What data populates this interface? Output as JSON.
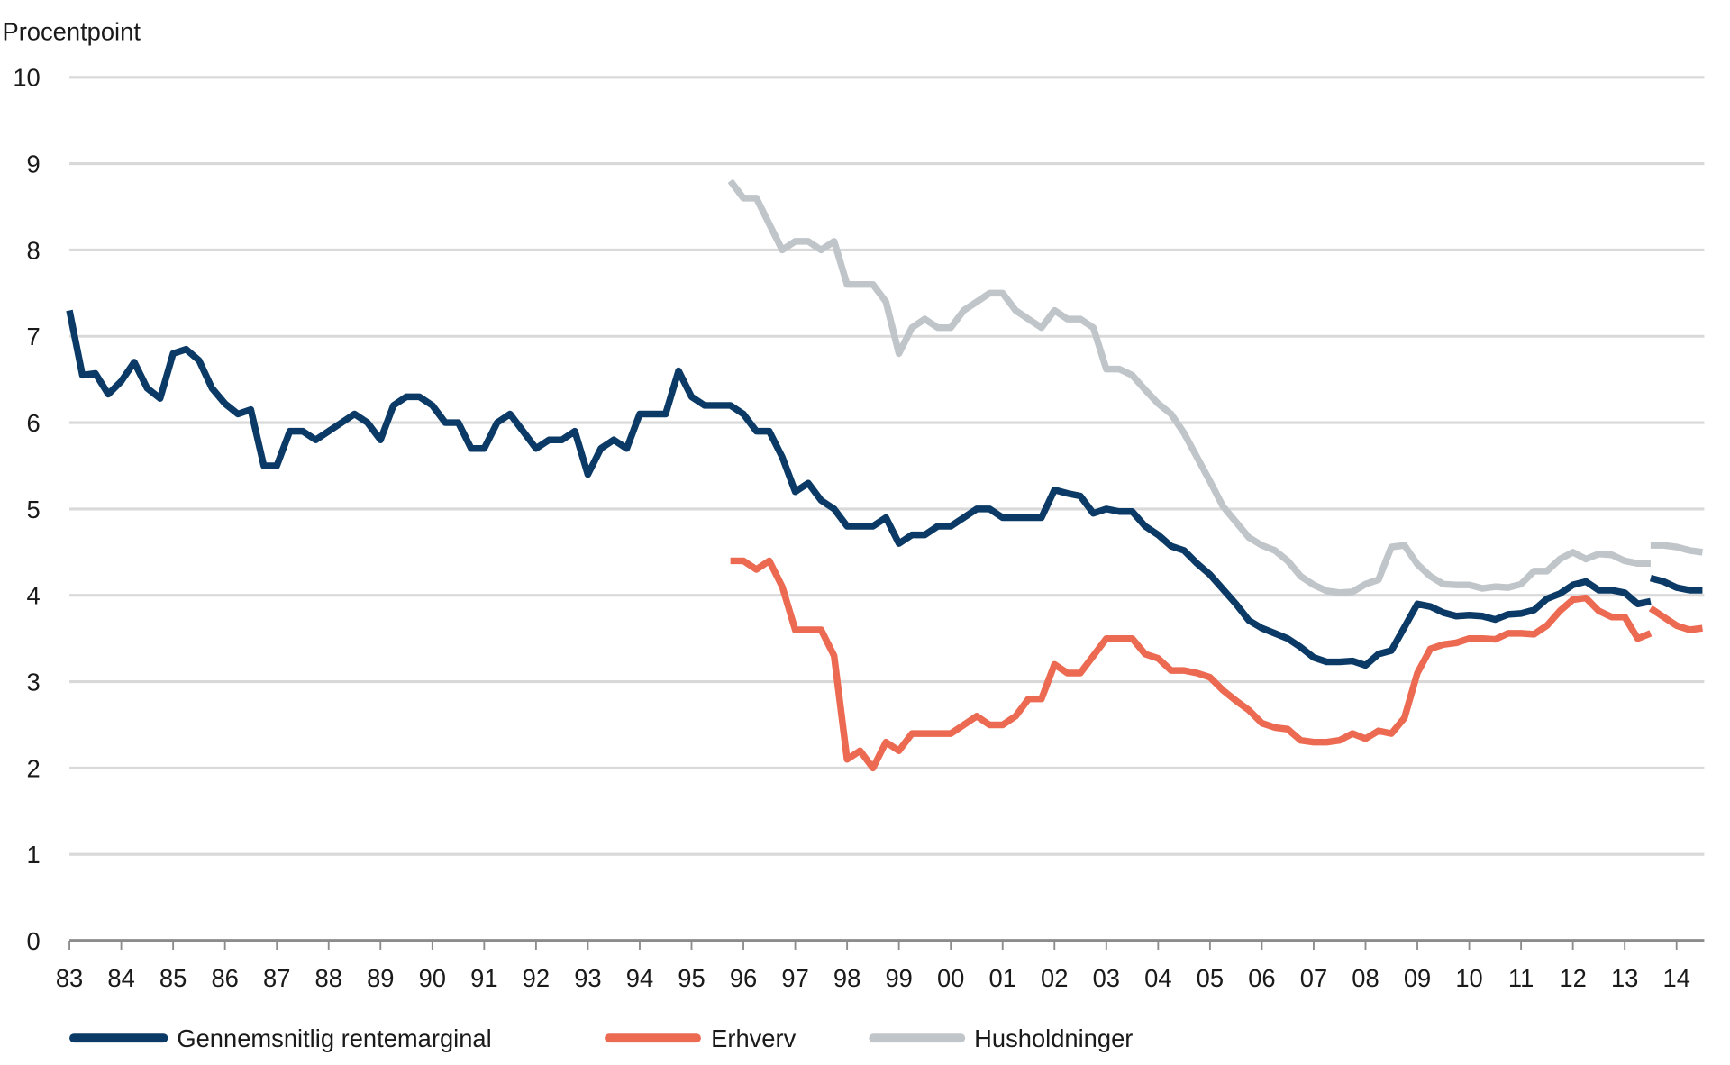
{
  "chart_data": {
    "type": "line",
    "ylabel": "Procentpoint",
    "ylim": [
      0,
      10
    ],
    "yticks": [
      "0",
      "1",
      "2",
      "3",
      "4",
      "5",
      "6",
      "7",
      "8",
      "9",
      "10"
    ],
    "xlim": [
      1983,
      2014.55
    ],
    "xticks": [
      "83",
      "84",
      "85",
      "86",
      "87",
      "88",
      "89",
      "90",
      "91",
      "92",
      "93",
      "94",
      "95",
      "96",
      "97",
      "98",
      "99",
      "00",
      "01",
      "02",
      "03",
      "04",
      "05",
      "06",
      "07",
      "08",
      "09",
      "10",
      "11",
      "12",
      "13",
      "14"
    ],
    "grid": true,
    "legend_position": "bottom",
    "series": [
      {
        "name": "Gennemsnitlig rentemarginal",
        "color": "#0b3a66",
        "segments": [
          {
            "start": 1983.0,
            "step": 0.25,
            "values": [
              7.3,
              6.55,
              6.57,
              6.33,
              6.48,
              6.7,
              6.4,
              6.28,
              6.8,
              6.85,
              6.72,
              6.4,
              6.22,
              6.1,
              6.15,
              5.5,
              5.5,
              5.9,
              5.9,
              5.8,
              5.9,
              6.0,
              6.1,
              6.0,
              5.8,
              6.2,
              6.3,
              6.3,
              6.2,
              6.0,
              6.0,
              5.7,
              5.7,
              6.0,
              6.1,
              5.9,
              5.7,
              5.8,
              5.8,
              5.9,
              5.4,
              5.7,
              5.8,
              5.7,
              6.1,
              6.1,
              6.1,
              6.6,
              6.3,
              6.2,
              6.2,
              6.2,
              6.1,
              5.9,
              5.9,
              5.6,
              5.2,
              5.3,
              5.1,
              5.0,
              4.8,
              4.8,
              4.8,
              4.9,
              4.6,
              4.7,
              4.7,
              4.8,
              4.8,
              4.9,
              5.0,
              5.0,
              4.9,
              4.9,
              4.9,
              4.9,
              5.22,
              5.18,
              5.15,
              4.95,
              5.0,
              4.97,
              4.97,
              4.8,
              4.7,
              4.57,
              4.52,
              4.37,
              4.24,
              4.07,
              3.9,
              3.71,
              3.62,
              3.56,
              3.5,
              3.4,
              3.28,
              3.23,
              3.23,
              3.24,
              3.19,
              3.32,
              3.36,
              3.63,
              3.9,
              3.87,
              3.8,
              3.76,
              3.77,
              3.76,
              3.72,
              3.78,
              3.79,
              3.83,
              3.96,
              4.02,
              4.12,
              4.16,
              4.06,
              4.06,
              4.03,
              3.9,
              3.93
            ]
          },
          {
            "start": 2013.5,
            "step": 0.25,
            "values": [
              4.2,
              4.16,
              4.09,
              4.06,
              4.06
            ]
          }
        ]
      },
      {
        "name": "Erhverv",
        "color": "#ec6a52",
        "segments": [
          {
            "start": 1995.75,
            "step": 0.25,
            "values": [
              4.4,
              4.4,
              4.3,
              4.4,
              4.1,
              3.6,
              3.6,
              3.6,
              3.3,
              2.1,
              2.2,
              2.0,
              2.3,
              2.2,
              2.4,
              2.4,
              2.4,
              2.4,
              2.5,
              2.6,
              2.5,
              2.5,
              2.6,
              2.8,
              2.8,
              3.2,
              3.1,
              3.1,
              3.3,
              3.5,
              3.5,
              3.5,
              3.32,
              3.27,
              3.13,
              3.13,
              3.1,
              3.05,
              2.9,
              2.78,
              2.67,
              2.52,
              2.47,
              2.45,
              2.32,
              2.3,
              2.3,
              2.32,
              2.4,
              2.34,
              2.43,
              2.4,
              2.58,
              3.1,
              3.38,
              3.43,
              3.45,
              3.5,
              3.5,
              3.49,
              3.56,
              3.56,
              3.55,
              3.65,
              3.82,
              3.95,
              3.97,
              3.82,
              3.75,
              3.75,
              3.5,
              3.56
            ]
          },
          {
            "start": 2013.5,
            "step": 0.25,
            "values": [
              3.85,
              3.75,
              3.65,
              3.6,
              3.62
            ]
          }
        ]
      },
      {
        "name": "Husholdninger",
        "color": "#bfc5c9",
        "segments": [
          {
            "start": 1995.75,
            "step": 0.25,
            "values": [
              8.8,
              8.6,
              8.6,
              8.3,
              8.0,
              8.1,
              8.1,
              8.0,
              8.1,
              7.6,
              7.6,
              7.6,
              7.4,
              6.8,
              7.1,
              7.2,
              7.1,
              7.1,
              7.3,
              7.4,
              7.5,
              7.5,
              7.3,
              7.2,
              7.1,
              7.3,
              7.2,
              7.2,
              7.1,
              6.62,
              6.62,
              6.55,
              6.38,
              6.22,
              6.1,
              5.88,
              5.6,
              5.32,
              5.03,
              4.85,
              4.67,
              4.58,
              4.52,
              4.4,
              4.22,
              4.12,
              4.05,
              4.03,
              4.04,
              4.13,
              4.18,
              4.56,
              4.58,
              4.36,
              4.22,
              4.13,
              4.12,
              4.12,
              4.08,
              4.1,
              4.09,
              4.13,
              4.28,
              4.28,
              4.42,
              4.5,
              4.42,
              4.48,
              4.47,
              4.4,
              4.37,
              4.37
            ]
          },
          {
            "start": 2013.5,
            "step": 0.25,
            "values": [
              4.58,
              4.58,
              4.56,
              4.52,
              4.5
            ]
          }
        ]
      }
    ]
  }
}
